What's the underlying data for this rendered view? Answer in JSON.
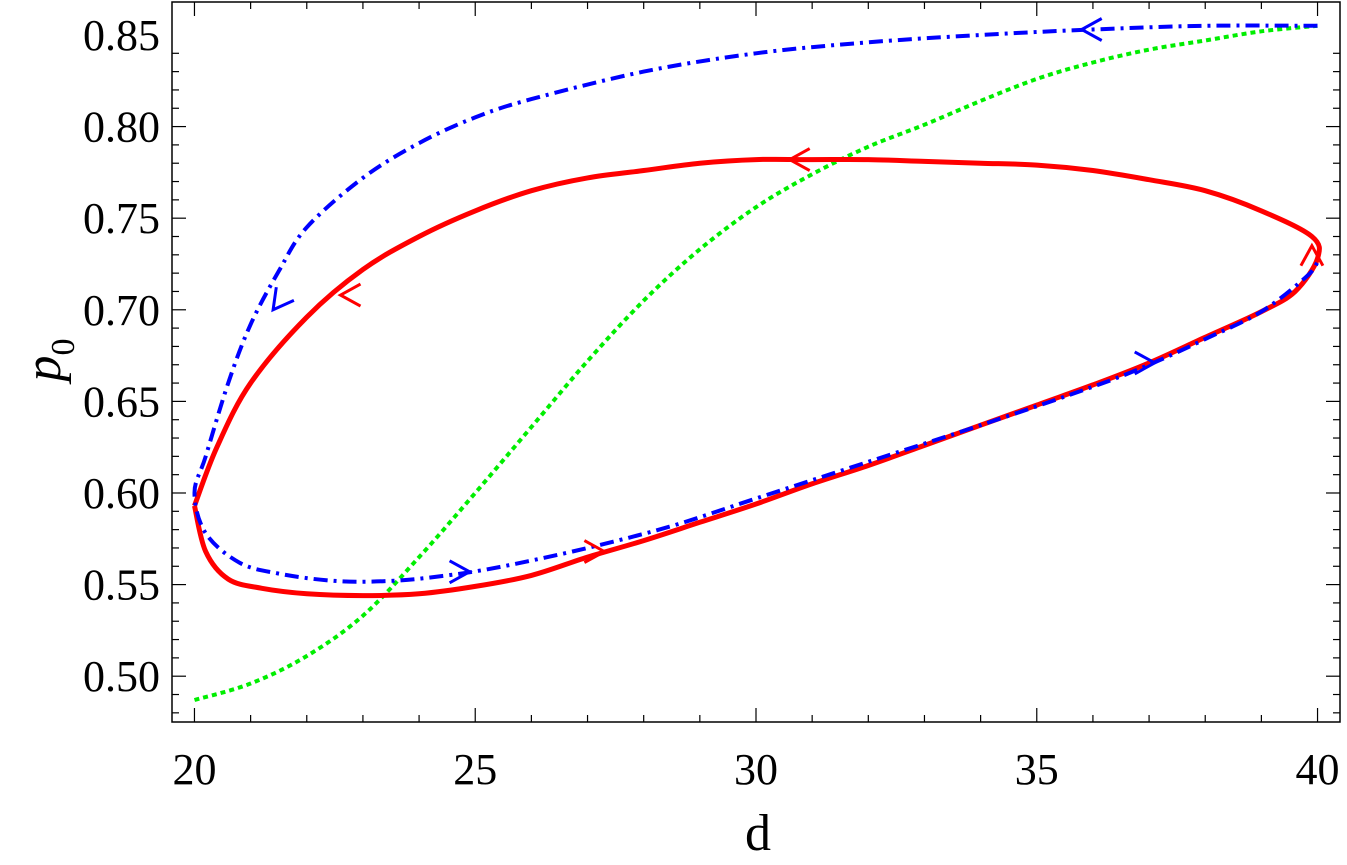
{
  "chart_data": {
    "type": "line",
    "xlabel": "d",
    "ylabel": "p",
    "ylabel_subscript": "0",
    "xlim": [
      19.6,
      40.4
    ],
    "ylim": [
      0.475,
      0.868
    ],
    "x_ticks": [
      20,
      25,
      30,
      35,
      40
    ],
    "x_tick_labels": [
      "20",
      "25",
      "30",
      "35",
      "40"
    ],
    "y_ticks": [
      0.5,
      0.55,
      0.6,
      0.65,
      0.7,
      0.75,
      0.8,
      0.85
    ],
    "y_tick_labels": [
      "0.50",
      "0.55",
      "0.60",
      "0.65",
      "0.70",
      "0.75",
      "0.80",
      "0.85"
    ],
    "grid": false,
    "colors": {
      "red": "#ff0000",
      "blue": "#0000ff",
      "green": "#00ee00"
    },
    "series": [
      {
        "key": "red",
        "style": "solid",
        "color": "#ff0000",
        "closed": true,
        "points": [
          [
            20.0,
            0.593
          ],
          [
            20.2,
            0.568
          ],
          [
            20.6,
            0.553
          ],
          [
            21.2,
            0.548
          ],
          [
            22.0,
            0.545
          ],
          [
            23.0,
            0.544
          ],
          [
            24.0,
            0.545
          ],
          [
            25.0,
            0.549
          ],
          [
            26.0,
            0.555
          ],
          [
            27.0,
            0.565
          ],
          [
            28.0,
            0.574
          ],
          [
            29.0,
            0.584
          ],
          [
            30.0,
            0.594
          ],
          [
            31.0,
            0.605
          ],
          [
            32.0,
            0.615
          ],
          [
            33.0,
            0.626
          ],
          [
            34.0,
            0.637
          ],
          [
            35.0,
            0.648
          ],
          [
            36.0,
            0.659
          ],
          [
            37.0,
            0.671
          ],
          [
            38.0,
            0.685
          ],
          [
            39.0,
            0.699
          ],
          [
            39.6,
            0.71
          ],
          [
            40.0,
            0.728
          ],
          [
            39.9,
            0.74
          ],
          [
            39.0,
            0.754
          ],
          [
            38.0,
            0.765
          ],
          [
            37.0,
            0.771
          ],
          [
            36.0,
            0.776
          ],
          [
            35.0,
            0.779
          ],
          [
            34.0,
            0.78
          ],
          [
            33.0,
            0.781
          ],
          [
            32.0,
            0.782
          ],
          [
            31.0,
            0.782
          ],
          [
            30.0,
            0.782
          ],
          [
            29.0,
            0.78
          ],
          [
            28.0,
            0.776
          ],
          [
            27.0,
            0.772
          ],
          [
            26.0,
            0.765
          ],
          [
            25.0,
            0.754
          ],
          [
            24.0,
            0.74
          ],
          [
            23.0,
            0.722
          ],
          [
            22.0,
            0.696
          ],
          [
            21.0,
            0.66
          ],
          [
            20.4,
            0.625
          ],
          [
            20.0,
            0.593
          ]
        ],
        "arrows": [
          [
            27.3,
            0.568,
            "right"
          ],
          [
            30.6,
            0.782,
            "left"
          ],
          [
            39.9,
            0.735,
            "up"
          ],
          [
            22.6,
            0.708,
            "left"
          ]
        ]
      },
      {
        "key": "blue",
        "style": "dashdot",
        "color": "#0000ff",
        "points": [
          [
            40.0,
            0.855
          ],
          [
            38.0,
            0.855
          ],
          [
            36.0,
            0.853
          ],
          [
            34.0,
            0.85
          ],
          [
            32.0,
            0.846
          ],
          [
            30.0,
            0.84
          ],
          [
            28.0,
            0.83
          ],
          [
            26.0,
            0.815
          ],
          [
            25.0,
            0.805
          ],
          [
            24.0,
            0.791
          ],
          [
            23.0,
            0.772
          ],
          [
            22.0,
            0.745
          ],
          [
            21.5,
            0.721
          ],
          [
            21.0,
            0.692
          ],
          [
            20.6,
            0.66
          ],
          [
            20.2,
            0.62
          ],
          [
            20.0,
            0.6
          ],
          [
            20.2,
            0.578
          ],
          [
            20.8,
            0.562
          ],
          [
            21.5,
            0.556
          ],
          [
            22.5,
            0.552
          ],
          [
            23.5,
            0.552
          ],
          [
            24.5,
            0.555
          ],
          [
            25.5,
            0.56
          ],
          [
            27.0,
            0.57
          ],
          [
            28.5,
            0.582
          ],
          [
            30.0,
            0.597
          ],
          [
            32.0,
            0.617
          ],
          [
            34.0,
            0.637
          ],
          [
            36.0,
            0.658
          ],
          [
            37.0,
            0.67
          ],
          [
            38.0,
            0.684
          ],
          [
            39.0,
            0.699
          ],
          [
            39.8,
            0.718
          ],
          [
            40.0,
            0.726
          ]
        ],
        "arrows": [
          [
            35.8,
            0.853,
            "left"
          ],
          [
            21.4,
            0.7,
            "down-left"
          ],
          [
            24.9,
            0.557,
            "right"
          ],
          [
            37.1,
            0.671,
            "right"
          ]
        ]
      },
      {
        "key": "green",
        "style": "dotted",
        "color": "#00ee00",
        "points": [
          [
            20.0,
            0.487
          ],
          [
            21.0,
            0.496
          ],
          [
            22.0,
            0.511
          ],
          [
            23.0,
            0.533
          ],
          [
            24.0,
            0.565
          ],
          [
            25.0,
            0.6
          ],
          [
            26.0,
            0.636
          ],
          [
            27.0,
            0.672
          ],
          [
            28.0,
            0.705
          ],
          [
            29.0,
            0.733
          ],
          [
            30.0,
            0.756
          ],
          [
            31.0,
            0.774
          ],
          [
            32.0,
            0.789
          ],
          [
            33.0,
            0.801
          ],
          [
            34.0,
            0.814
          ],
          [
            35.0,
            0.826
          ],
          [
            36.0,
            0.835
          ],
          [
            37.0,
            0.842
          ],
          [
            38.0,
            0.847
          ],
          [
            39.0,
            0.852
          ],
          [
            40.0,
            0.855
          ]
        ]
      }
    ]
  }
}
